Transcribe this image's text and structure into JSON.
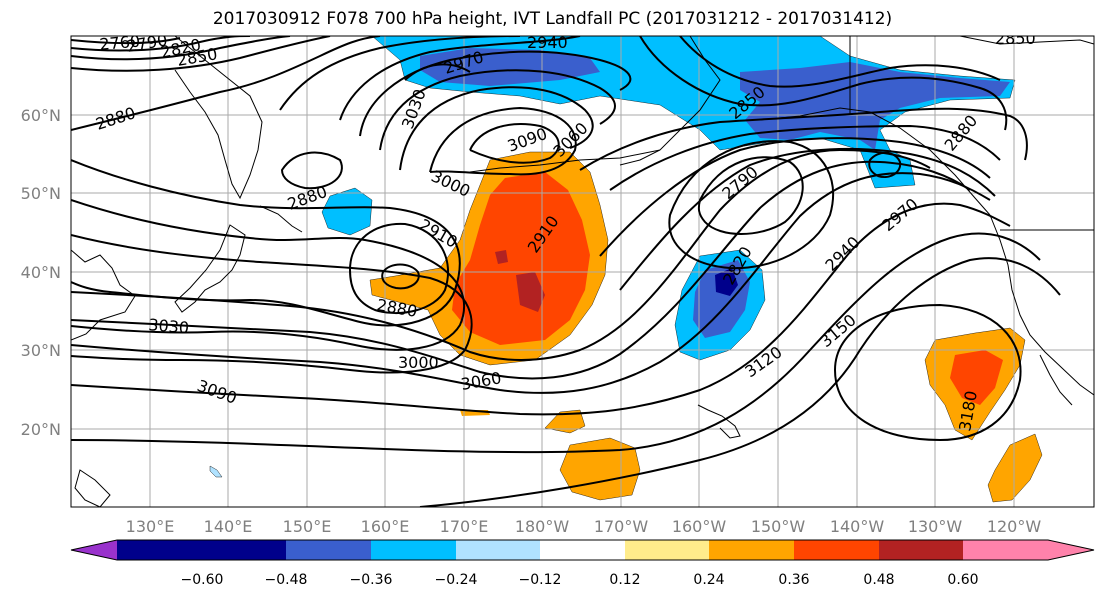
{
  "title": "2017030912 F078 700 hPa height, IVT Landfall PC (2017031212 - 2017031412)",
  "map": {
    "lat_labels": [
      "60°N",
      "50°N",
      "40°N",
      "30°N",
      "20°N"
    ],
    "lon_labels": [
      "130°E",
      "140°E",
      "150°E",
      "160°E",
      "170°E",
      "180°W",
      "170°W",
      "160°W",
      "150°W",
      "140°W",
      "130°W",
      "120°W"
    ],
    "contour_labels": [
      "2760",
      "2790",
      "2820",
      "2850",
      "2880",
      "2970",
      "2940",
      "3030",
      "3090",
      "3060",
      "3000",
      "2910",
      "2880",
      "2910",
      "2880",
      "3030",
      "3000",
      "3060",
      "3090",
      "2850",
      "2880",
      "2790",
      "2820",
      "2940",
      "2970",
      "3120",
      "3150",
      "3180",
      "2850"
    ]
  },
  "colorbar": {
    "ticks": [
      "−0.60",
      "−0.48",
      "−0.36",
      "−0.24",
      "−0.12",
      "0.12",
      "0.24",
      "0.36",
      "0.48",
      "0.60"
    ],
    "colors": [
      "#9932cc",
      "#00008b",
      "#3a5fcd",
      "#00bfff",
      "#b0e2ff",
      "#ffffff",
      "#ffec8b",
      "#ffa500",
      "#ff4500",
      "#b22222",
      "#ff82ab"
    ]
  }
}
